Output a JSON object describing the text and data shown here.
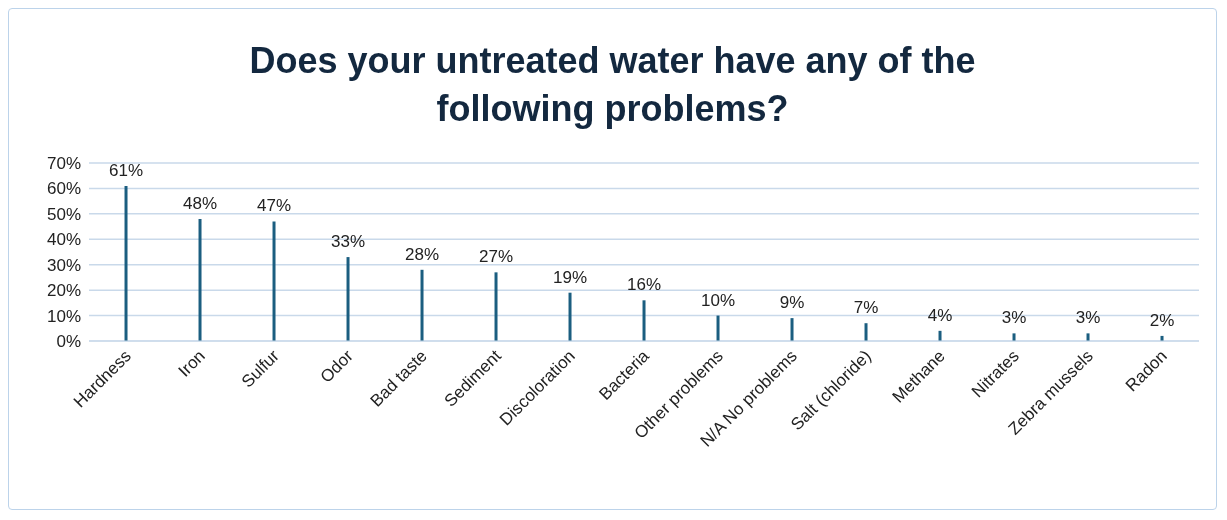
{
  "chart_data": {
    "type": "bar",
    "title": "Does your untreated water have any of the following problems?",
    "categories": [
      "Hardness",
      "Iron",
      "Sulfur",
      "Odor",
      "Bad taste",
      "Sediment",
      "Discoloration",
      "Bacteria",
      "Other problems",
      "N/A No problems",
      "Salt (chloride)",
      "Methane",
      "Nitrates",
      "Zebra mussels",
      "Radon"
    ],
    "values": [
      61,
      48,
      47,
      33,
      28,
      27,
      19,
      16,
      10,
      9,
      7,
      4,
      3,
      3,
      2
    ],
    "value_labels": [
      "61%",
      "48%",
      "47%",
      "33%",
      "28%",
      "27%",
      "19%",
      "16%",
      "10%",
      "9%",
      "7%",
      "4%",
      "3%",
      "3%",
      "2%"
    ],
    "color": "#1b5e80",
    "ylim": [
      0,
      70
    ],
    "yticks": [
      {
        "value": 0,
        "label": "0%"
      },
      {
        "value": 10,
        "label": "10%"
      },
      {
        "value": 20,
        "label": "20%"
      },
      {
        "value": 30,
        "label": "30%"
      },
      {
        "value": 40,
        "label": "40%"
      },
      {
        "value": 50,
        "label": "50%"
      },
      {
        "value": 60,
        "label": "60%"
      },
      {
        "value": 70,
        "label": "70%"
      }
    ],
    "grid": "y",
    "legend": false
  }
}
